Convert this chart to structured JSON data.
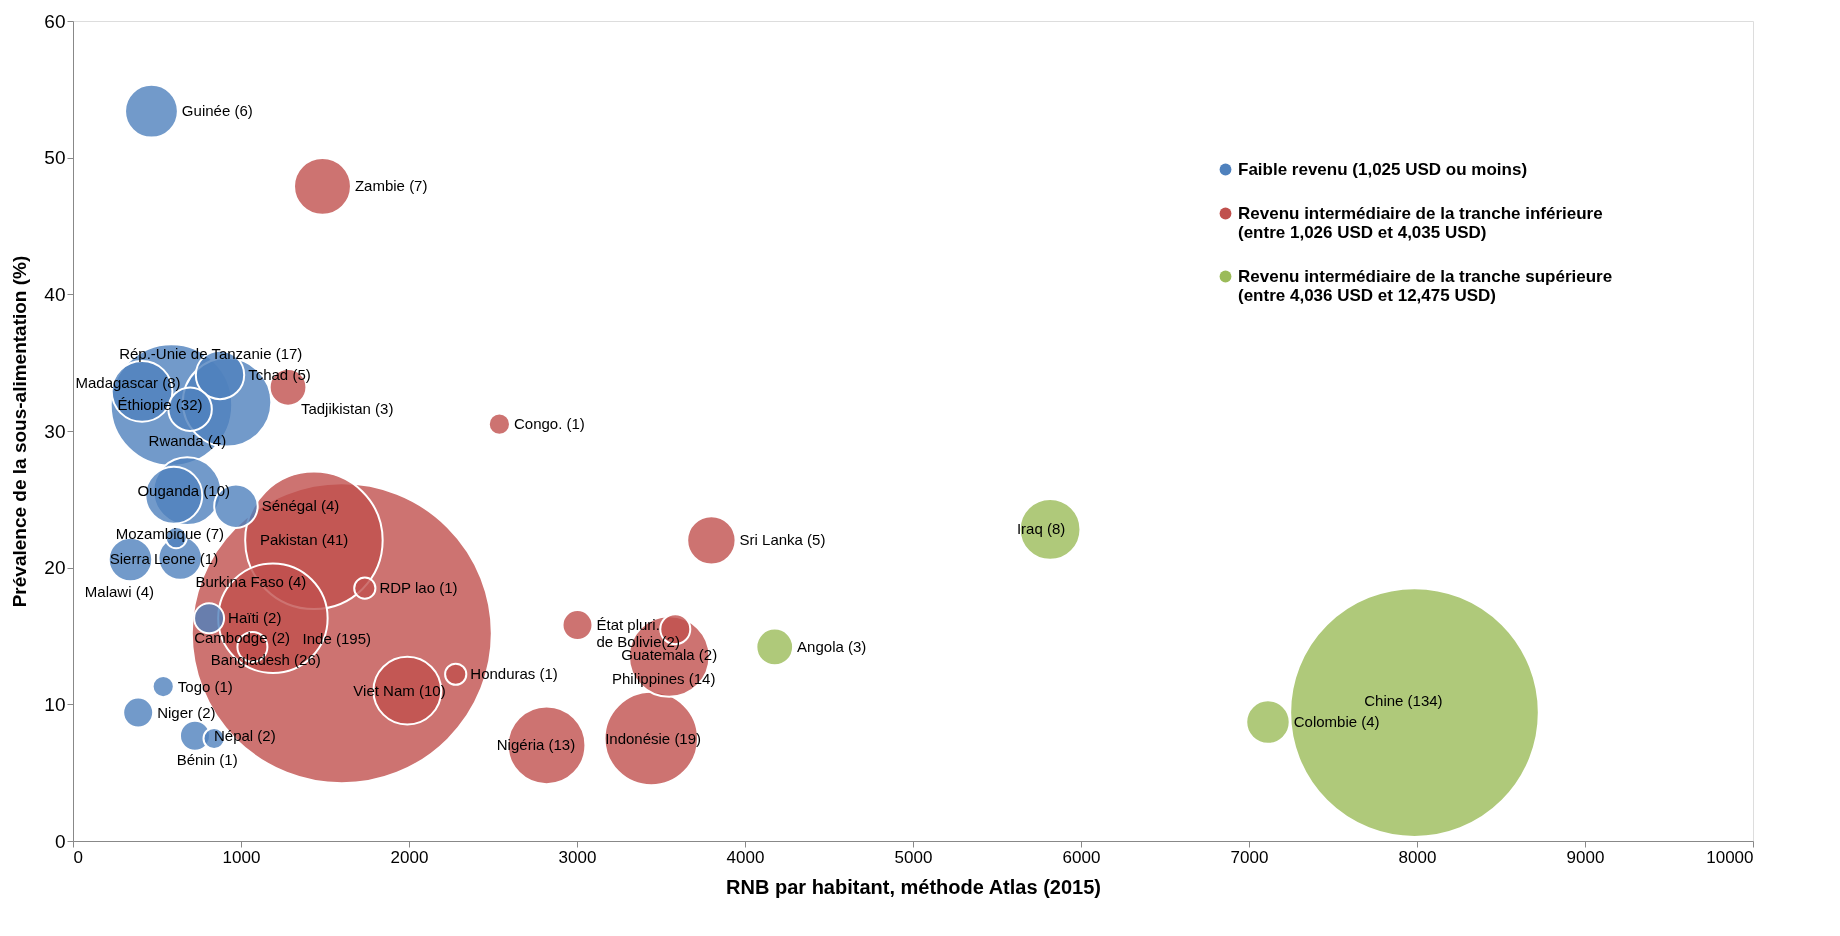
{
  "chart_data": {
    "type": "bubble",
    "xlabel": "RNB par habitant, méthode Atlas (2015)",
    "ylabel": "Prévalence de la sous-alimentation (%)",
    "xlim": [
      0,
      10000
    ],
    "xticks": [
      0,
      1000,
      2000,
      3000,
      4000,
      5000,
      6000,
      7000,
      8000,
      9000,
      10000
    ],
    "ylim": [
      0,
      60
    ],
    "yticks": [
      0,
      10,
      20,
      30,
      40,
      50,
      60
    ],
    "grid": false,
    "legend": "top right",
    "series": [
      {
        "name": "Faible revenu (1,025 USD ou moins)",
        "color": "#4f81bd",
        "x": [
          467,
          586,
          411,
          875,
          697,
          917,
          680,
          600,
          970,
          614,
          342,
          638,
          537,
          388,
          726,
          840,
          810
        ],
        "values": [
          53.4,
          31.9,
          32.9,
          34.1,
          31.6,
          32.1,
          25.6,
          25.3,
          24.5,
          22.2,
          20.6,
          20.7,
          11.3,
          9.4,
          7.7,
          7.5,
          16.3
        ],
        "sizes": [
          0.031,
          0.164,
          0.041,
          0.026,
          0.021,
          0.087,
          0.051,
          0.036,
          0.021,
          0.005,
          0.021,
          0.021,
          0.005,
          0.01,
          0.01,
          0.005,
          0.01
        ]
      },
      {
        "name": "Revenu intermédiaire de la tranche inférieure\n(entre 1,026 USD et 4,035 USD)",
        "color": "#c0504d",
        "x": [
          1485,
          1280,
          2538,
          1434,
          1600,
          1190,
          1068,
          1737,
          2278,
          1990,
          3003,
          3585,
          3549,
          2819,
          3442,
          3800
        ],
        "values": [
          47.9,
          33.2,
          30.5,
          22.0,
          15.2,
          16.3,
          14.2,
          18.5,
          12.2,
          11.0,
          15.8,
          15.5,
          13.5,
          7.0,
          7.5,
          22.0
        ],
        "sizes": [
          0.036,
          0.015,
          0.005,
          0.21,
          1,
          0.133,
          0.01,
          0.005,
          0.005,
          0.051,
          0.01,
          0.01,
          0.072,
          0.067,
          0.097,
          0.026
        ]
      },
      {
        "name": "Revenu intermédiaire de la tranche supérieure\n(entre 4,036 USD et 12,475 USD)",
        "color": "#9bbb59",
        "x": [
          4177,
          5816,
          7113,
          7985
        ],
        "values": [
          14.2,
          22.8,
          8.7,
          9.4
        ],
        "sizes": [
          0.015,
          0.041,
          0.021,
          0.687
        ]
      }
    ],
    "annotations": [
      {
        "text": "Guinée (6)",
        "x": 467,
        "y": 53.4
      },
      {
        "text": "Éthiopie (32)",
        "x": 586,
        "y": 31.9
      },
      {
        "text": "Madagascar (8)",
        "x": 411,
        "y": 32.9
      },
      {
        "text": "Tchad (5)",
        "x": 875,
        "y": 34.1
      },
      {
        "text": "Rwanda (4)",
        "x": 697,
        "y": 31.6
      },
      {
        "text": "Rép.-Unie de Tanzanie (17)",
        "x": 917,
        "y": 32.1
      },
      {
        "text": "Ouganda (10)",
        "x": 680,
        "y": 25.6
      },
      {
        "text": "Mozambique (7)",
        "x": 600,
        "y": 25.3
      },
      {
        "text": "Sénégal (4)",
        "x": 970,
        "y": 24.5
      },
      {
        "text": "Sierra Leone (1)",
        "x": 614,
        "y": 22.2
      },
      {
        "text": "Malawi  (4)",
        "x": 342,
        "y": 20.6
      },
      {
        "text": "Burkina Faso (4)",
        "x": 638,
        "y": 20.7
      },
      {
        "text": "Togo (1)",
        "x": 537,
        "y": 11.3
      },
      {
        "text": "Niger (2)",
        "x": 388,
        "y": 9.4
      },
      {
        "text": "Népal (2)",
        "x": 726,
        "y": 7.7
      },
      {
        "text": "Bénin (1)",
        "x": 840,
        "y": 7.5
      },
      {
        "text": "Haïti (2)",
        "x": 810,
        "y": 16.3
      },
      {
        "text": "Zambie (7)",
        "x": 1485,
        "y": 47.9
      },
      {
        "text": "Tadjikistan (3)",
        "x": 1280,
        "y": 33.2
      },
      {
        "text": "Congo. (1)",
        "x": 2538,
        "y": 30.5
      },
      {
        "text": "Pakistan (41)",
        "x": 1434,
        "y": 22.0
      },
      {
        "text": "Inde (195)",
        "x": 1600,
        "y": 15.2
      },
      {
        "text": "Bangladesh (26)",
        "x": 1190,
        "y": 16.3
      },
      {
        "text": "Cambodge (2)",
        "x": 1068,
        "y": 14.2
      },
      {
        "text": "RDP lao (1)",
        "x": 1737,
        "y": 18.5
      },
      {
        "text": "Honduras (1)",
        "x": 2278,
        "y": 12.2
      },
      {
        "text": "Viet Nam (10)",
        "x": 1990,
        "y": 11.0
      },
      {
        "text": "État pluri.\nde Bolivie(2)",
        "x": 3003,
        "y": 15.8
      },
      {
        "text": "Guatemala (2)",
        "x": 3585,
        "y": 15.5
      },
      {
        "text": "Philippines (14)",
        "x": 3549,
        "y": 13.5
      },
      {
        "text": "Nigéria (13)",
        "x": 2819,
        "y": 7.0
      },
      {
        "text": "Indonésie (19)",
        "x": 3442,
        "y": 7.5
      },
      {
        "text": "Sri Lanka (5)",
        "x": 3800,
        "y": 22.0
      },
      {
        "text": "Angola (3)",
        "x": 4177,
        "y": 14.2
      },
      {
        "text": "Iraq (8)",
        "x": 5816,
        "y": 22.8
      },
      {
        "text": "Colombie (4)",
        "x": 7113,
        "y": 8.7
      },
      {
        "text": "Chine (134)",
        "x": 7985,
        "y": 9.4
      }
    ]
  }
}
